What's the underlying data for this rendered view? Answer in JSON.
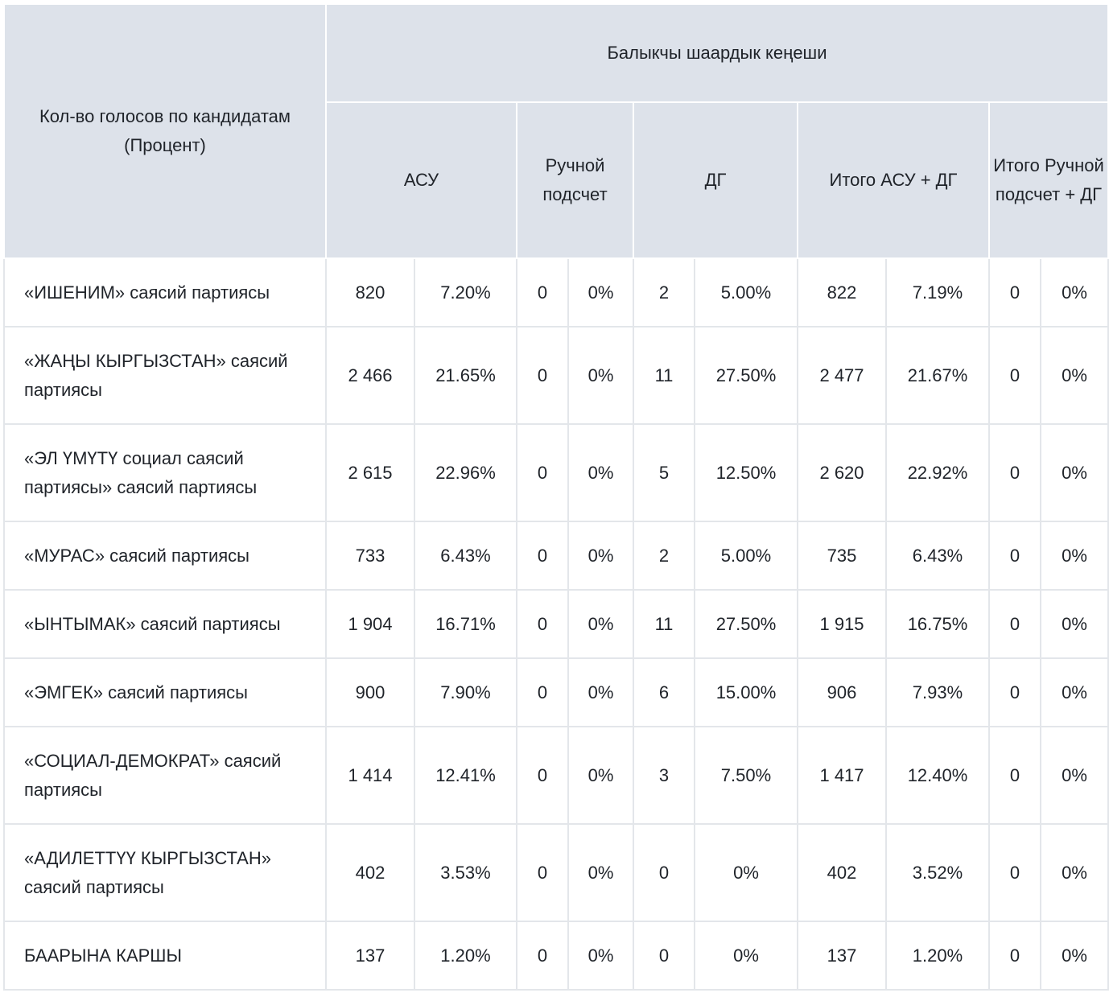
{
  "table": {
    "corner_header": "Кол-во голосов по кандидатам (Процент)",
    "group_header": "Балыкчы шаардык кеңеши",
    "sub_headers": [
      "АСУ",
      "Ручной подсчет",
      "ДГ",
      "Итого АСУ + ДГ",
      "Итого Ручной подсчет + ДГ"
    ],
    "rows": [
      {
        "party": "«ИШЕНИМ» саясий партиясы",
        "cells": [
          "820",
          "7.20%",
          "0",
          "0%",
          "2",
          "5.00%",
          "822",
          "7.19%",
          "0",
          "0%"
        ]
      },
      {
        "party": "«ЖАҢЫ КЫРГЫЗСТАН» саясий партиясы",
        "cells": [
          "2 466",
          "21.65%",
          "0",
          "0%",
          "11",
          "27.50%",
          "2 477",
          "21.67%",
          "0",
          "0%"
        ]
      },
      {
        "party": "«ЭЛ ҮМҮТҮ социал саясий партиясы» саясий партиясы",
        "cells": [
          "2 615",
          "22.96%",
          "0",
          "0%",
          "5",
          "12.50%",
          "2 620",
          "22.92%",
          "0",
          "0%"
        ]
      },
      {
        "party": "«МУРАС» саясий партиясы",
        "cells": [
          "733",
          "6.43%",
          "0",
          "0%",
          "2",
          "5.00%",
          "735",
          "6.43%",
          "0",
          "0%"
        ]
      },
      {
        "party": "«ЫНТЫМАК» саясий партиясы",
        "cells": [
          "1 904",
          "16.71%",
          "0",
          "0%",
          "11",
          "27.50%",
          "1 915",
          "16.75%",
          "0",
          "0%"
        ]
      },
      {
        "party": "«ЭМГЕК» саясий партиясы",
        "cells": [
          "900",
          "7.90%",
          "0",
          "0%",
          "6",
          "15.00%",
          "906",
          "7.93%",
          "0",
          "0%"
        ]
      },
      {
        "party": "«СОЦИАЛ-ДЕМОКРАТ» саясий партиясы",
        "cells": [
          "1 414",
          "12.41%",
          "0",
          "0%",
          "3",
          "7.50%",
          "1 417",
          "12.40%",
          "0",
          "0%"
        ]
      },
      {
        "party": "«АДИЛЕТТҮҮ КЫРГЫЗСТАН» саясий партиясы",
        "cells": [
          "402",
          "3.53%",
          "0",
          "0%",
          "0",
          "0%",
          "402",
          "3.52%",
          "0",
          "0%"
        ]
      },
      {
        "party": "БААРЫНА КАРШЫ",
        "cells": [
          "137",
          "1.20%",
          "0",
          "0%",
          "0",
          "0%",
          "137",
          "1.20%",
          "0",
          "0%"
        ]
      }
    ]
  }
}
